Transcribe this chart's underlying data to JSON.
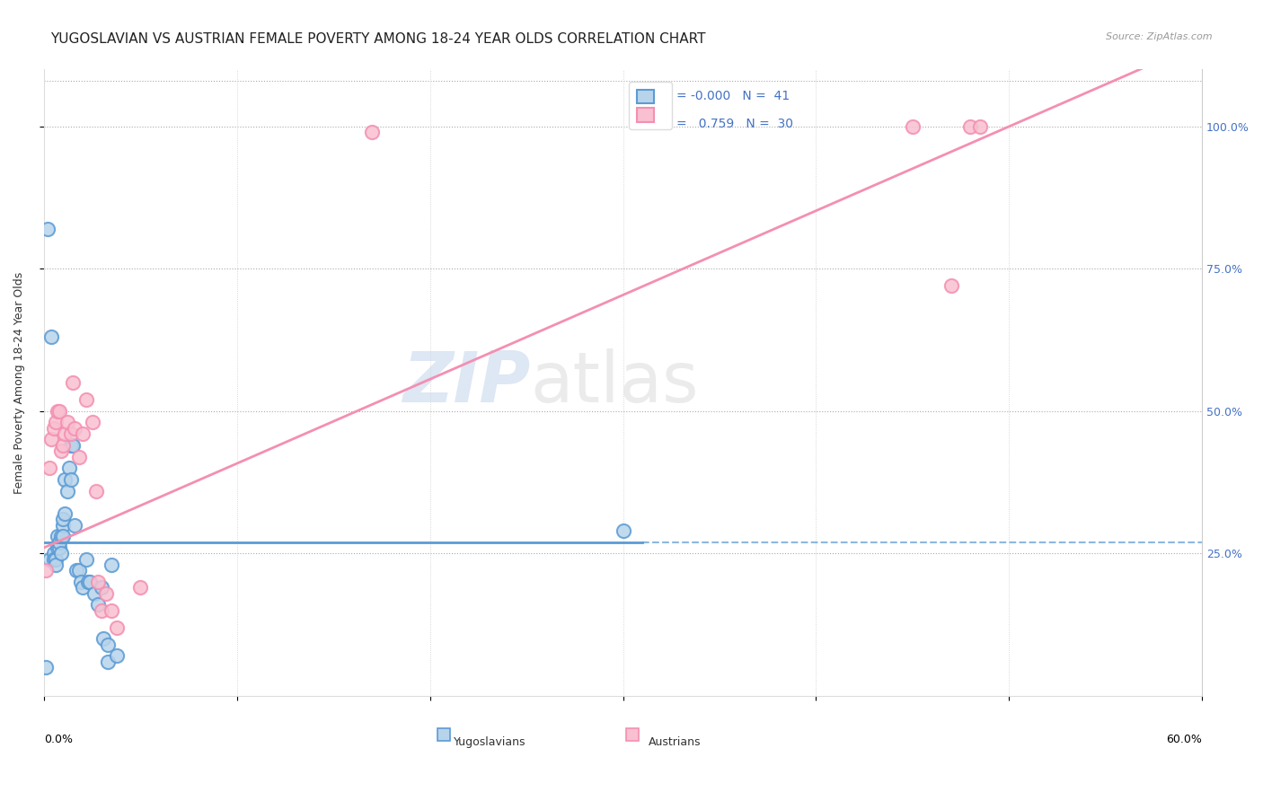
{
  "title": "YUGOSLAVIAN VS AUSTRIAN FEMALE POVERTY AMONG 18-24 YEAR OLDS CORRELATION CHART",
  "source": "Source: ZipAtlas.com",
  "ylabel": "Female Poverty Among 18-24 Year Olds",
  "ytick_labels": [
    "25.0%",
    "50.0%",
    "75.0%",
    "100.0%"
  ],
  "ytick_values": [
    0.25,
    0.5,
    0.75,
    1.0
  ],
  "watermark_zip": "ZIP",
  "watermark_atlas": "atlas",
  "blue_color": "#5b9bd5",
  "pink_color": "#f48fb1",
  "blue_fill": "#b8d4ea",
  "pink_fill": "#f8c0d0",
  "yug_x": [
    0.001,
    0.003,
    0.004,
    0.005,
    0.005,
    0.006,
    0.006,
    0.007,
    0.007,
    0.008,
    0.008,
    0.009,
    0.009,
    0.01,
    0.01,
    0.01,
    0.011,
    0.011,
    0.012,
    0.013,
    0.014,
    0.014,
    0.015,
    0.016,
    0.017,
    0.018,
    0.019,
    0.02,
    0.022,
    0.023,
    0.024,
    0.026,
    0.028,
    0.03,
    0.031,
    0.033,
    0.033,
    0.035,
    0.038,
    0.3,
    0.002
  ],
  "yug_y": [
    0.05,
    0.24,
    0.63,
    0.25,
    0.24,
    0.24,
    0.23,
    0.28,
    0.26,
    0.26,
    0.27,
    0.28,
    0.25,
    0.3,
    0.31,
    0.28,
    0.32,
    0.38,
    0.36,
    0.4,
    0.44,
    0.38,
    0.44,
    0.3,
    0.22,
    0.22,
    0.2,
    0.19,
    0.24,
    0.2,
    0.2,
    0.18,
    0.16,
    0.19,
    0.1,
    0.09,
    0.06,
    0.23,
    0.07,
    0.29,
    0.82
  ],
  "aut_x": [
    0.001,
    0.003,
    0.004,
    0.005,
    0.006,
    0.007,
    0.008,
    0.009,
    0.01,
    0.011,
    0.012,
    0.014,
    0.015,
    0.016,
    0.018,
    0.02,
    0.022,
    0.025,
    0.027,
    0.028,
    0.03,
    0.032,
    0.035,
    0.038,
    0.05,
    0.17,
    0.45,
    0.47,
    0.48,
    0.485
  ],
  "aut_y": [
    0.22,
    0.4,
    0.45,
    0.47,
    0.48,
    0.5,
    0.5,
    0.43,
    0.44,
    0.46,
    0.48,
    0.46,
    0.55,
    0.47,
    0.42,
    0.46,
    0.52,
    0.48,
    0.36,
    0.2,
    0.15,
    0.18,
    0.15,
    0.12,
    0.19,
    0.99,
    1.0,
    0.72,
    1.0,
    1.0
  ],
  "title_fontsize": 11,
  "axis_label_fontsize": 9,
  "tick_fontsize": 9,
  "legend_R_color": "#4472c4",
  "xlim": [
    0.0,
    0.6
  ],
  "ylim": [
    0.0,
    1.1
  ],
  "yug_trend_solid_end": 0.31,
  "aut_trend_intercept": 0.26,
  "aut_trend_slope_x1": 0.5,
  "aut_trend_slope_y1": 1.0
}
